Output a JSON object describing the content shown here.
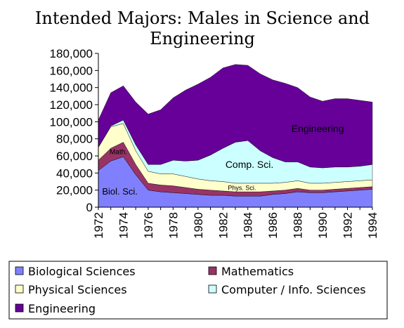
{
  "chart_data": {
    "type": "area",
    "stacked": true,
    "title_lines": [
      "Intended Majors: Males in Science and",
      "Engineering"
    ],
    "x": [
      1972,
      1973,
      1974,
      1975,
      1976,
      1977,
      1978,
      1979,
      1980,
      1981,
      1982,
      1983,
      1984,
      1985,
      1986,
      1987,
      1988,
      1989,
      1990,
      1991,
      1992,
      1993,
      1994
    ],
    "x_tick_labels": [
      "1972",
      "1974",
      "1976",
      "1978",
      "1980",
      "1982",
      "1984",
      "1986",
      "1988",
      "1990",
      "1992",
      "1994"
    ],
    "ylim": [
      0,
      180000
    ],
    "y_tick_labels": [
      "0",
      "20,000",
      "40,000",
      "60,000",
      "80,000",
      "100,000",
      "120,000",
      "140,000",
      "160,000",
      "180,000"
    ],
    "grid": false,
    "legend_placement": "bottom",
    "series": [
      {
        "name": "Biological Sciences",
        "color": "#8080ff",
        "values": [
          43000,
          54000,
          59000,
          38000,
          20000,
          18000,
          17000,
          16000,
          15000,
          14000,
          14000,
          13000,
          13000,
          13000,
          15000,
          16000,
          18000,
          17000,
          17000,
          18000,
          19000,
          20000,
          21000
        ]
      },
      {
        "name": "Mathematics",
        "color": "#993366",
        "values": [
          12000,
          15000,
          17000,
          12000,
          8000,
          8000,
          8000,
          7000,
          6000,
          6000,
          5000,
          5000,
          5000,
          5000,
          4000,
          4000,
          4000,
          3000,
          3000,
          3000,
          3000,
          3000,
          3000
        ]
      },
      {
        "name": "Physical Sciences",
        "color": "#ffffcc",
        "values": [
          15000,
          25000,
          22000,
          16000,
          14000,
          13000,
          14000,
          13000,
          12000,
          11000,
          11000,
          10000,
          10000,
          10000,
          9000,
          9000,
          9000,
          8000,
          8000,
          8000,
          8000,
          8000,
          8000
        ]
      },
      {
        "name": "Computer / Info. Sciences",
        "color": "#ccffff",
        "values": [
          0,
          1000,
          4000,
          7000,
          8000,
          11000,
          16000,
          18000,
          22000,
          30000,
          39000,
          48000,
          50000,
          38000,
          30000,
          24000,
          22000,
          19000,
          18000,
          18000,
          17000,
          17000,
          18000
        ]
      },
      {
        "name": "Engineering",
        "color": "#660099",
        "values": [
          32000,
          39000,
          40000,
          50000,
          59000,
          64000,
          73000,
          83000,
          89000,
          91000,
          94000,
          91000,
          88000,
          90000,
          91000,
          92000,
          87000,
          82000,
          78000,
          80000,
          80000,
          77000,
          73000
        ]
      }
    ],
    "annotations": [
      {
        "text": "Biol. Sci.",
        "x": 1972.3,
        "y": 15000,
        "size": 13
      },
      {
        "text": "Math.",
        "x": 1972.9,
        "y": 62000,
        "size": 10
      },
      {
        "text": "Phys. Sci.",
        "x": 1982.4,
        "y": 20000,
        "size": 9
      },
      {
        "text": "Comp. Sci.",
        "x": 1982.2,
        "y": 46000,
        "size": 14
      },
      {
        "text": "Engineering",
        "x": 1987.5,
        "y": 88000,
        "size": 14
      }
    ]
  }
}
